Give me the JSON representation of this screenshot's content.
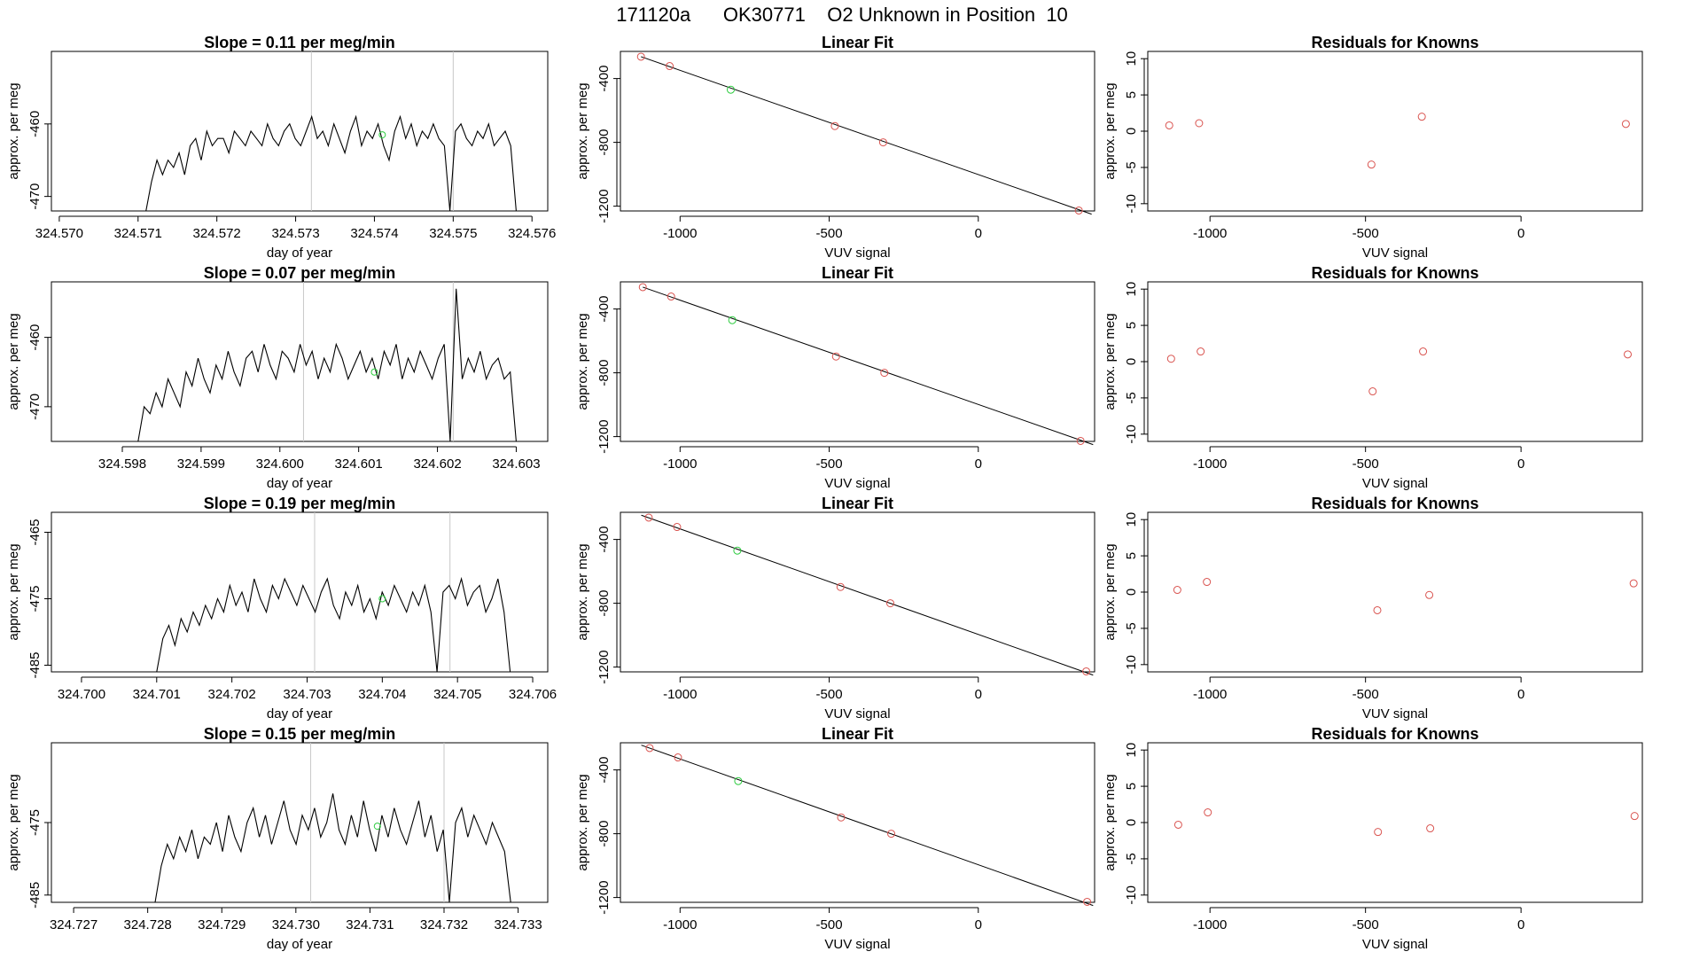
{
  "figure_title": "171120a      OK30771    O2 Unknown in Position  10",
  "colors": {
    "known_point": "#d9534f",
    "unknown_point": "#2ecc40",
    "line": "#000000",
    "vline": "#c8c8c8"
  },
  "chart_data": [
    {
      "type": "line",
      "title": "Slope =  0.11  per meg/min",
      "xlabel": "day of year",
      "ylabel": "approx. per meg",
      "xlim": [
        324.5699,
        324.5762
      ],
      "ylim": [
        -472,
        -450
      ],
      "xticks": [
        "324.570",
        "324.571",
        "324.572",
        "324.573",
        "324.574",
        "324.575",
        "324.576"
      ],
      "yticks": [
        "-460",
        "-470"
      ],
      "vlines": [
        324.5732,
        324.575
      ],
      "unknown_point": {
        "x": 324.5741,
        "y": -461.5
      },
      "series": [
        {
          "start": 324.5711,
          "end": 324.5758,
          "baseline": -463,
          "step_in": -472,
          "seed": 11,
          "values": [
            -472,
            -468,
            -465,
            -467,
            -465,
            -466,
            -464,
            -467,
            -463,
            -462,
            -465,
            -461,
            -463,
            -462,
            -462,
            -464,
            -461,
            -462,
            -463,
            -461,
            -462,
            -463,
            -460,
            -462,
            -463,
            -461,
            -460,
            -462,
            -463,
            -461,
            -459,
            -462,
            -461,
            -463,
            -460,
            -462,
            -464,
            -461,
            -459,
            -463,
            -461,
            -462,
            -460,
            -463,
            -465,
            -461,
            -459,
            -462,
            -460,
            -463,
            -461,
            -462,
            -460,
            -462,
            -463,
            -472,
            -461,
            -460,
            -462,
            -463,
            -461,
            -462,
            -460,
            -463,
            -462,
            -461,
            -463,
            -472
          ]
        }
      ]
    },
    {
      "type": "scatter",
      "title": "Linear Fit",
      "xlabel": "VUV signal",
      "ylabel": "approx. per meg",
      "xlim": [
        -1200,
        390
      ],
      "ylim": [
        -1230,
        -230
      ],
      "xticks": [
        "-1000",
        "-500",
        "0"
      ],
      "yticks": [
        "-400",
        "-800",
        "-1200"
      ],
      "known_points": [
        [
          -1131,
          -263
        ],
        [
          -1035,
          -322
        ],
        [
          -481,
          -698
        ],
        [
          -319,
          -800
        ],
        [
          337,
          -1227
        ]
      ],
      "unknown_point": [
        -830,
        -470
      ],
      "fit_line": [
        [
          -1131,
          -263
        ],
        [
          380,
          -1250
        ]
      ]
    },
    {
      "type": "scatter",
      "title": "Residuals for Knowns",
      "xlabel": "VUV signal",
      "ylabel": "approx. per meg",
      "xlim": [
        -1200,
        390
      ],
      "ylim": [
        -11,
        11
      ],
      "xticks": [
        "-1000",
        "-500",
        "0"
      ],
      "yticks": [
        "10",
        "5",
        "0",
        "-5",
        "-10"
      ],
      "points": [
        [
          -1131,
          0.8
        ],
        [
          -1035,
          1.1
        ],
        [
          -481,
          -4.6
        ],
        [
          -319,
          2.0
        ],
        [
          337,
          1.0
        ]
      ]
    },
    {
      "type": "line",
      "title": "Slope =  0.07  per meg/min",
      "xlabel": "day of year",
      "ylabel": "approx. per meg",
      "xlim": [
        324.5971,
        324.6034
      ],
      "ylim": [
        -475,
        -452
      ],
      "xticks": [
        "324.598",
        "324.599",
        "324.600",
        "324.601",
        "324.602",
        "324.603"
      ],
      "yticks": [
        "-460",
        "-470"
      ],
      "vlines": [
        324.6003,
        324.6022
      ],
      "unknown_point": {
        "x": 324.6012,
        "y": -465
      },
      "series": [
        {
          "start": 324.5982,
          "end": 324.603,
          "seed": 7,
          "values": [
            -475,
            -470,
            -471,
            -468,
            -470,
            -466,
            -468,
            -470,
            -465,
            -467,
            -463,
            -466,
            -468,
            -464,
            -466,
            -462,
            -465,
            -467,
            -463,
            -462,
            -465,
            -461,
            -464,
            -466,
            -462,
            -463,
            -465,
            -461,
            -464,
            -462,
            -466,
            -463,
            -465,
            -461,
            -463,
            -466,
            -464,
            -462,
            -465,
            -463,
            -466,
            -462,
            -464,
            -461,
            -466,
            -463,
            -465,
            -462,
            -464,
            -466,
            -463,
            -461,
            -475,
            -453,
            -466,
            -463,
            -465,
            -462,
            -466,
            -464,
            -463,
            -466,
            -465,
            -475
          ]
        }
      ]
    },
    {
      "type": "scatter",
      "title": "Linear Fit",
      "xlabel": "VUV signal",
      "ylabel": "approx. per meg",
      "xlim": [
        -1200,
        390
      ],
      "ylim": [
        -1230,
        -230
      ],
      "xticks": [
        "-1000",
        "-500",
        "0"
      ],
      "yticks": [
        "-400",
        "-800",
        "-1200"
      ],
      "known_points": [
        [
          -1125,
          -263
        ],
        [
          -1030,
          -322
        ],
        [
          -477,
          -698
        ],
        [
          -315,
          -800
        ],
        [
          343,
          -1227
        ]
      ],
      "unknown_point": [
        -825,
        -470
      ],
      "fit_line": [
        [
          -1125,
          -263
        ],
        [
          385,
          -1250
        ]
      ]
    },
    {
      "type": "scatter",
      "title": "Residuals for Knowns",
      "xlabel": "VUV signal",
      "ylabel": "approx. per meg",
      "xlim": [
        -1200,
        390
      ],
      "ylim": [
        -11,
        11
      ],
      "xticks": [
        "-1000",
        "-500",
        "0"
      ],
      "yticks": [
        "10",
        "5",
        "0",
        "-5",
        "-10"
      ],
      "points": [
        [
          -1125,
          0.4
        ],
        [
          -1030,
          1.4
        ],
        [
          -477,
          -4.1
        ],
        [
          -315,
          1.4
        ],
        [
          343,
          1.0
        ]
      ]
    },
    {
      "type": "line",
      "title": "Slope =  0.19  per meg/min",
      "xlabel": "day of year",
      "ylabel": "approx. per meg",
      "xlim": [
        324.6996,
        324.7062
      ],
      "ylim": [
        -486,
        -462
      ],
      "xticks": [
        "324.700",
        "324.701",
        "324.702",
        "324.703",
        "324.704",
        "324.705",
        "324.706"
      ],
      "yticks": [
        "-465",
        "-475",
        "-485"
      ],
      "vlines": [
        324.7031,
        324.7049
      ],
      "unknown_point": {
        "x": 324.704,
        "y": -475
      },
      "series": [
        {
          "start": 324.701,
          "end": 324.7057,
          "seed": 19,
          "values": [
            -486,
            -481,
            -479,
            -482,
            -478,
            -480,
            -477,
            -479,
            -476,
            -478,
            -475,
            -477,
            -473,
            -476,
            -474,
            -477,
            -472,
            -475,
            -477,
            -473,
            -475,
            -472,
            -474,
            -476,
            -473,
            -475,
            -477,
            -474,
            -472,
            -476,
            -478,
            -474,
            -476,
            -473,
            -477,
            -475,
            -478,
            -474,
            -476,
            -473,
            -475,
            -477,
            -474,
            -476,
            -473,
            -477,
            -486,
            -474,
            -473,
            -475,
            -472,
            -476,
            -474,
            -473,
            -477,
            -475,
            -472,
            -477,
            -486
          ]
        }
      ]
    },
    {
      "type": "scatter",
      "title": "Linear Fit",
      "xlabel": "VUV signal",
      "ylabel": "approx. per meg",
      "xlim": [
        -1200,
        390
      ],
      "ylim": [
        -1230,
        -230
      ],
      "xticks": [
        "-1000",
        "-500",
        "0"
      ],
      "yticks": [
        "-400",
        "-800",
        "-1200"
      ],
      "known_points": [
        [
          -1105,
          -263
        ],
        [
          -1010,
          -322
        ],
        [
          -462,
          -698
        ],
        [
          -295,
          -800
        ],
        [
          362,
          -1227
        ]
      ],
      "unknown_point": [
        -808,
        -470
      ],
      "fit_line": [
        [
          -1130,
          -248
        ],
        [
          385,
          -1250
        ]
      ]
    },
    {
      "type": "scatter",
      "title": "Residuals for Knowns",
      "xlabel": "VUV signal",
      "ylabel": "approx. per meg",
      "xlim": [
        -1200,
        390
      ],
      "ylim": [
        -11,
        11
      ],
      "xticks": [
        "-1000",
        "-500",
        "0"
      ],
      "yticks": [
        "10",
        "5",
        "0",
        "-5",
        "-10"
      ],
      "points": [
        [
          -1105,
          0.3
        ],
        [
          -1010,
          1.4
        ],
        [
          -462,
          -2.5
        ],
        [
          -295,
          -0.4
        ],
        [
          362,
          1.2
        ]
      ]
    },
    {
      "type": "line",
      "title": "Slope =  0.15  per meg/min",
      "xlabel": "day of year",
      "ylabel": "approx. per meg",
      "xlim": [
        324.7267,
        324.7334
      ],
      "ylim": [
        -486,
        -464
      ],
      "xticks": [
        "324.727",
        "324.728",
        "324.729",
        "324.730",
        "324.731",
        "324.732",
        "324.733"
      ],
      "yticks": [
        "-475",
        "-485"
      ],
      "vlines": [
        324.7302,
        324.732
      ],
      "unknown_point": {
        "x": 324.7311,
        "y": -475.5
      },
      "series": [
        {
          "start": 324.7281,
          "end": 324.7329,
          "seed": 15,
          "values": [
            -486,
            -481,
            -478,
            -480,
            -477,
            -479,
            -476,
            -480,
            -477,
            -478,
            -475,
            -479,
            -474,
            -477,
            -479,
            -475,
            -473,
            -477,
            -474,
            -478,
            -475,
            -472,
            -476,
            -478,
            -474,
            -476,
            -473,
            -477,
            -475,
            -471,
            -476,
            -478,
            -474,
            -477,
            -472,
            -476,
            -479,
            -474,
            -477,
            -473,
            -476,
            -478,
            -475,
            -472,
            -477,
            -474,
            -479,
            -476,
            -486,
            -475,
            -473,
            -477,
            -474,
            -476,
            -478,
            -475,
            -477,
            -479,
            -486
          ]
        }
      ]
    },
    {
      "type": "scatter",
      "title": "Linear Fit",
      "xlabel": "VUV signal",
      "ylabel": "approx. per meg",
      "xlim": [
        -1200,
        390
      ],
      "ylim": [
        -1230,
        -230
      ],
      "xticks": [
        "-1000",
        "-500",
        "0"
      ],
      "yticks": [
        "-400",
        "-800",
        "-1200"
      ],
      "known_points": [
        [
          -1102,
          -263
        ],
        [
          -1007,
          -322
        ],
        [
          -460,
          -698
        ],
        [
          -292,
          -800
        ],
        [
          365,
          -1227
        ]
      ],
      "unknown_point": [
        -805,
        -470
      ],
      "fit_line": [
        [
          -1130,
          -245
        ],
        [
          385,
          -1250
        ]
      ]
    },
    {
      "type": "scatter",
      "title": "Residuals for Knowns",
      "xlabel": "VUV signal",
      "ylabel": "approx. per meg",
      "xlim": [
        -1200,
        390
      ],
      "ylim": [
        -11,
        11
      ],
      "xticks": [
        "-1000",
        "-500",
        "0"
      ],
      "yticks": [
        "10",
        "5",
        "0",
        "-5",
        "-10"
      ],
      "points": [
        [
          -1102,
          -0.3
        ],
        [
          -1007,
          1.4
        ],
        [
          -460,
          -1.3
        ],
        [
          -292,
          -0.8
        ],
        [
          365,
          0.9
        ]
      ]
    }
  ]
}
